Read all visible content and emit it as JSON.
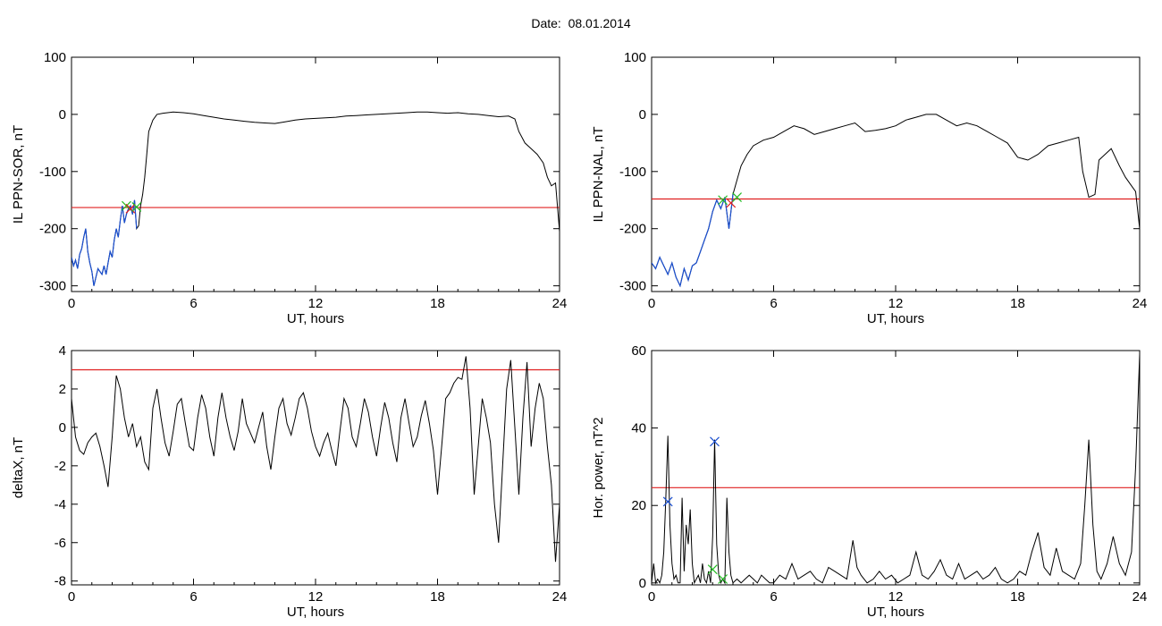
{
  "page": {
    "title": "Date:  08.01.2014"
  },
  "chart_data": [
    {
      "type": "line",
      "ylabel": "IL PPN-SOR, nT",
      "xlabel": "UT, hours",
      "xlim": [
        0,
        24
      ],
      "ylim": [
        -310,
        100
      ],
      "xticks": [
        0,
        6,
        12,
        18,
        24
      ],
      "yticks": [
        -300,
        -200,
        -100,
        0,
        100
      ],
      "threshold": -163,
      "colors": {
        "line": "#000000",
        "highlight": "#1a4fd0",
        "threshold": "#e02020",
        "marker_green": "#22bb22",
        "marker_red": "#e02020"
      },
      "series": [
        {
          "x": [
            0,
            0.1,
            0.2,
            0.3,
            0.4,
            0.5,
            0.6,
            0.7,
            0.8,
            0.9,
            1.0,
            1.1,
            1.2,
            1.3,
            1.4,
            1.5,
            1.6,
            1.7,
            1.8,
            1.9,
            2.0,
            2.1,
            2.2,
            2.3,
            2.4,
            2.5,
            2.6,
            2.7,
            2.8,
            2.9,
            3.0,
            3.1,
            3.2,
            3.3,
            3.4,
            3.5,
            3.6,
            3.7,
            3.8,
            4.0,
            4.2,
            4.5,
            5,
            5.5,
            6,
            6.5,
            7,
            7.5,
            8,
            8.5,
            9,
            9.5,
            10,
            10.5,
            11,
            11.5,
            12,
            12.5,
            13,
            13.5,
            14,
            14.5,
            15,
            15.5,
            16,
            16.5,
            17,
            17.5,
            18,
            18.5,
            19,
            19.5,
            20,
            20.5,
            21,
            21.5,
            21.8,
            22,
            22.3,
            22.6,
            22.9,
            23.2,
            23.4,
            23.6,
            23.8,
            24
          ],
          "y": [
            -250,
            -265,
            -255,
            -270,
            -245,
            -235,
            -215,
            -200,
            -240,
            -260,
            -275,
            -300,
            -285,
            -270,
            -275,
            -280,
            -265,
            -280,
            -260,
            -240,
            -250,
            -220,
            -200,
            -215,
            -185,
            -160,
            -190,
            -175,
            -165,
            -160,
            -175,
            -150,
            -200,
            -195,
            -160,
            -140,
            -110,
            -70,
            -30,
            -10,
            0,
            2,
            4,
            3,
            1,
            -2,
            -5,
            -8,
            -10,
            -12,
            -14,
            -15,
            -16,
            -13,
            -10,
            -8,
            -7,
            -6,
            -5,
            -3,
            -2,
            -1,
            0,
            1,
            2,
            3,
            4,
            4,
            3,
            2,
            3,
            1,
            0,
            -2,
            -4,
            -3,
            -8,
            -30,
            -50,
            -60,
            -70,
            -85,
            -110,
            -125,
            -120,
            -205
          ]
        }
      ],
      "highlight": {
        "x_from": 0,
        "x_to": 3.2
      },
      "markers": [
        {
          "x": 2.7,
          "y": -160,
          "color": "green"
        },
        {
          "x": 2.9,
          "y": -165,
          "color": "red"
        },
        {
          "x": 3.2,
          "y": -162,
          "color": "green"
        }
      ]
    },
    {
      "type": "line",
      "ylabel": "IL PPN-NAL, nT",
      "xlabel": "UT, hours",
      "xlim": [
        0,
        24
      ],
      "ylim": [
        -310,
        100
      ],
      "xticks": [
        0,
        6,
        12,
        18,
        24
      ],
      "yticks": [
        -300,
        -200,
        -100,
        0,
        100
      ],
      "threshold": -148,
      "colors": {
        "line": "#000000",
        "highlight": "#1a4fd0",
        "threshold": "#e02020",
        "marker_green": "#22bb22",
        "marker_red": "#e02020"
      },
      "series": [
        {
          "x": [
            0,
            0.2,
            0.4,
            0.6,
            0.8,
            1.0,
            1.2,
            1.4,
            1.6,
            1.8,
            2.0,
            2.2,
            2.4,
            2.6,
            2.8,
            3.0,
            3.2,
            3.4,
            3.6,
            3.8,
            4.0,
            4.2,
            4.4,
            4.7,
            5.0,
            5.5,
            6.0,
            6.5,
            7.0,
            7.5,
            8.0,
            8.5,
            9,
            9.5,
            10,
            10.5,
            11,
            11.5,
            12,
            12.5,
            13,
            13.5,
            14,
            14.5,
            15,
            15.5,
            16,
            16.5,
            17,
            17.5,
            18,
            18.5,
            19,
            19.5,
            20,
            20.5,
            21,
            21.2,
            21.5,
            21.8,
            22,
            22.3,
            22.6,
            23,
            23.3,
            23.6,
            23.8,
            24
          ],
          "y": [
            -260,
            -270,
            -250,
            -265,
            -280,
            -260,
            -285,
            -300,
            -270,
            -290,
            -265,
            -260,
            -240,
            -220,
            -200,
            -170,
            -150,
            -165,
            -145,
            -200,
            -140,
            -115,
            -90,
            -70,
            -55,
            -45,
            -40,
            -30,
            -20,
            -25,
            -35,
            -30,
            -25,
            -20,
            -15,
            -30,
            -28,
            -25,
            -20,
            -10,
            -5,
            0,
            0,
            -10,
            -20,
            -15,
            -20,
            -30,
            -40,
            -50,
            -75,
            -80,
            -70,
            -55,
            -50,
            -45,
            -40,
            -100,
            -145,
            -140,
            -80,
            -70,
            -60,
            -90,
            -110,
            -125,
            -135,
            -200
          ]
        }
      ],
      "highlight": {
        "x_from": 0,
        "x_to": 4.0
      },
      "markers": [
        {
          "x": 3.5,
          "y": -150,
          "color": "green"
        },
        {
          "x": 3.9,
          "y": -155,
          "color": "red"
        },
        {
          "x": 4.2,
          "y": -145,
          "color": "green"
        }
      ]
    },
    {
      "type": "line",
      "ylabel": "deltaX, nT",
      "xlabel": "UT, hours",
      "xlim": [
        0,
        24
      ],
      "ylim": [
        -8.2,
        4
      ],
      "xticks": [
        0,
        6,
        12,
        18,
        24
      ],
      "yticks": [
        -8,
        -6,
        -4,
        -2,
        0,
        2,
        4
      ],
      "threshold": 3,
      "colors": {
        "line": "#000000",
        "threshold": "#e02020"
      },
      "series": [
        {
          "x": [
            0,
            0.2,
            0.4,
            0.6,
            0.8,
            1.0,
            1.2,
            1.4,
            1.6,
            1.8,
            2.0,
            2.2,
            2.4,
            2.6,
            2.8,
            3.0,
            3.2,
            3.4,
            3.6,
            3.8,
            4.0,
            4.2,
            4.4,
            4.6,
            4.8,
            5.0,
            5.2,
            5.4,
            5.6,
            5.8,
            6.0,
            6.2,
            6.4,
            6.6,
            6.8,
            7.0,
            7.2,
            7.4,
            7.6,
            7.8,
            8.0,
            8.2,
            8.4,
            8.6,
            8.8,
            9.0,
            9.2,
            9.4,
            9.6,
            9.8,
            10.0,
            10.2,
            10.4,
            10.6,
            10.8,
            11.0,
            11.2,
            11.4,
            11.6,
            11.8,
            12.0,
            12.2,
            12.4,
            12.6,
            12.8,
            13.0,
            13.2,
            13.4,
            13.6,
            13.8,
            14.0,
            14.2,
            14.4,
            14.6,
            14.8,
            15.0,
            15.2,
            15.4,
            15.6,
            15.8,
            16.0,
            16.2,
            16.4,
            16.6,
            16.8,
            17.0,
            17.2,
            17.4,
            17.6,
            17.8,
            18.0,
            18.2,
            18.4,
            18.6,
            18.8,
            19.0,
            19.2,
            19.4,
            19.6,
            19.8,
            20.0,
            20.2,
            20.4,
            20.6,
            20.8,
            21.0,
            21.2,
            21.4,
            21.6,
            21.8,
            22.0,
            22.2,
            22.4,
            22.6,
            22.8,
            23.0,
            23.2,
            23.4,
            23.6,
            23.8,
            24.0
          ],
          "y": [
            1.5,
            -0.5,
            -1.2,
            -1.4,
            -0.8,
            -0.5,
            -0.3,
            -1.0,
            -2.0,
            -3.1,
            -0.5,
            2.7,
            2.0,
            0.5,
            -0.5,
            0.2,
            -1.0,
            -0.5,
            -1.8,
            -2.2,
            1.0,
            2.0,
            0.5,
            -0.8,
            -1.5,
            -0.2,
            1.2,
            1.5,
            0.2,
            -1.0,
            -1.2,
            0.5,
            1.7,
            1.0,
            -0.5,
            -1.5,
            0.5,
            1.8,
            0.5,
            -0.5,
            -1.2,
            -0.2,
            1.5,
            0.2,
            -0.3,
            -0.8,
            0.0,
            0.8,
            -1.0,
            -2.2,
            -0.5,
            1.0,
            1.5,
            0.2,
            -0.4,
            0.5,
            1.5,
            1.8,
            1.0,
            -0.2,
            -1.0,
            -1.5,
            -0.8,
            -0.3,
            -1.2,
            -2.0,
            -0.2,
            1.5,
            1.0,
            -0.5,
            -1.0,
            0.2,
            1.5,
            0.8,
            -0.5,
            -1.5,
            0.0,
            1.3,
            0.5,
            -0.8,
            -1.8,
            0.5,
            1.5,
            0.2,
            -1.0,
            -0.5,
            0.6,
            1.4,
            0.2,
            -1.2,
            -3.5,
            -1.0,
            1.5,
            1.8,
            2.3,
            2.6,
            2.5,
            3.7,
            1.0,
            -3.5,
            -1.0,
            1.5,
            0.5,
            -0.8,
            -4.0,
            -6.0,
            -2.0,
            2.0,
            3.5,
            0.0,
            -3.5,
            0.5,
            3.4,
            -1.0,
            1.0,
            2.3,
            1.5,
            -1.0,
            -3.0,
            -7.0,
            -4.0
          ]
        }
      ]
    },
    {
      "type": "line",
      "ylabel": "Hor. power, nT^2",
      "xlabel": "UT, hours",
      "xlim": [
        0,
        24
      ],
      "ylim": [
        -0.5,
        60
      ],
      "xticks": [
        0,
        6,
        12,
        18,
        24
      ],
      "yticks": [
        0,
        20,
        40,
        60
      ],
      "threshold": 24.6,
      "colors": {
        "line": "#000000",
        "threshold": "#e02020",
        "marker_green": "#22bb22",
        "marker_blue": "#1a4fd0"
      },
      "series": [
        {
          "x": [
            0,
            0.1,
            0.2,
            0.3,
            0.4,
            0.5,
            0.6,
            0.7,
            0.8,
            0.9,
            1.0,
            1.1,
            1.2,
            1.3,
            1.4,
            1.5,
            1.6,
            1.7,
            1.8,
            1.9,
            2.0,
            2.1,
            2.2,
            2.3,
            2.4,
            2.5,
            2.6,
            2.7,
            2.8,
            2.9,
            3.0,
            3.1,
            3.2,
            3.3,
            3.4,
            3.5,
            3.6,
            3.7,
            3.8,
            3.9,
            4.0,
            4.2,
            4.4,
            4.6,
            4.8,
            5.0,
            5.2,
            5.4,
            5.6,
            5.8,
            6.0,
            6.3,
            6.6,
            6.9,
            7.2,
            7.5,
            7.8,
            8.1,
            8.4,
            8.7,
            9.0,
            9.3,
            9.6,
            9.9,
            10.1,
            10.3,
            10.6,
            10.9,
            11.2,
            11.5,
            11.8,
            12.1,
            12.4,
            12.7,
            13.0,
            13.3,
            13.6,
            13.9,
            14.2,
            14.5,
            14.8,
            15.1,
            15.4,
            15.7,
            16.0,
            16.3,
            16.6,
            16.9,
            17.2,
            17.5,
            17.8,
            18.1,
            18.4,
            18.7,
            19.0,
            19.3,
            19.6,
            19.9,
            20.2,
            20.5,
            20.8,
            21.1,
            21.3,
            21.5,
            21.7,
            21.9,
            22.1,
            22.4,
            22.7,
            23.0,
            23.3,
            23.6,
            23.8,
            24.0
          ],
          "y": [
            0,
            5,
            0,
            1,
            0,
            2,
            8,
            22,
            38,
            15,
            5,
            1,
            2,
            0,
            0,
            22,
            3,
            15,
            10,
            19,
            5,
            0,
            1,
            2,
            0,
            5,
            1,
            0,
            3,
            0,
            12,
            37,
            10,
            2,
            0,
            1,
            0,
            22,
            8,
            2,
            0,
            1,
            0,
            1,
            2,
            1,
            0,
            2,
            1,
            0,
            0,
            2,
            1,
            5,
            1,
            2,
            3,
            1,
            0,
            4,
            3,
            2,
            1,
            11,
            4,
            2,
            0,
            1,
            3,
            1,
            2,
            0,
            1,
            2,
            8,
            2,
            1,
            3,
            6,
            2,
            1,
            5,
            1,
            2,
            3,
            1,
            2,
            4,
            1,
            0,
            1,
            3,
            2,
            8,
            13,
            4,
            2,
            9,
            3,
            2,
            1,
            5,
            20,
            37,
            15,
            3,
            1,
            5,
            12,
            5,
            2,
            8,
            30,
            59
          ]
        }
      ],
      "markers": [
        {
          "x": 0.8,
          "y": 21,
          "color": "blue"
        },
        {
          "x": 3.1,
          "y": 36.5,
          "color": "blue"
        },
        {
          "x": 3.0,
          "y": 3.5,
          "color": "green"
        },
        {
          "x": 3.5,
          "y": 1,
          "color": "green"
        }
      ]
    }
  ]
}
